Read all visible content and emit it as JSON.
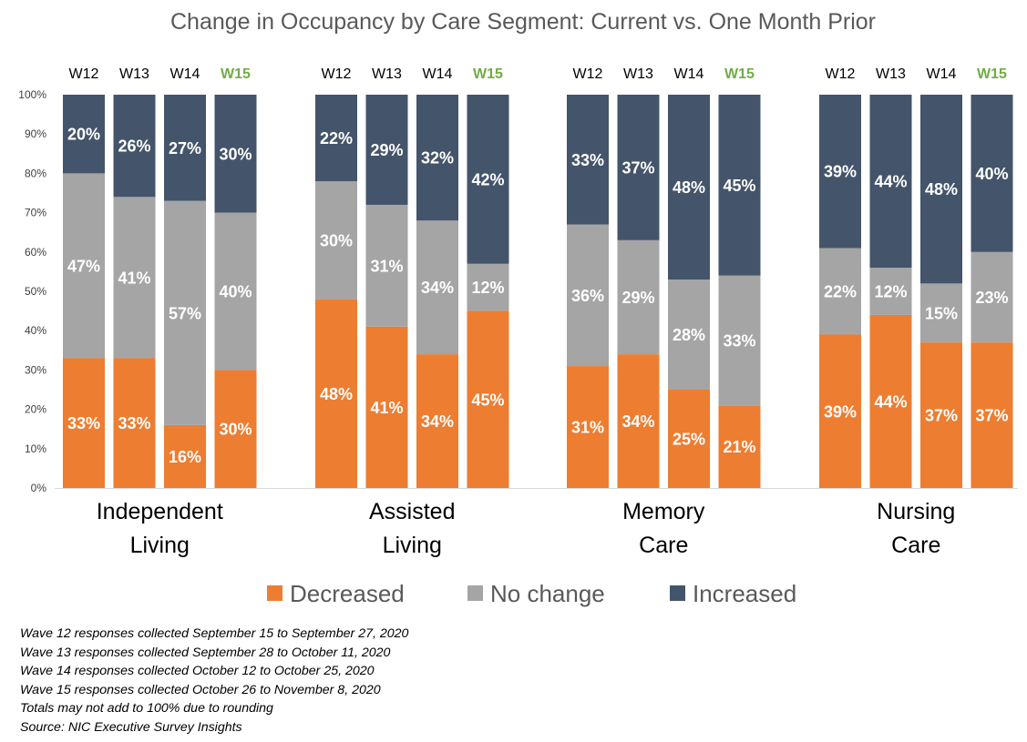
{
  "chart_data": {
    "type": "bar",
    "stacked": true,
    "title": "Change in Occupancy by Care Segment: Current vs. One Month Prior",
    "ylim": [
      0,
      100
    ],
    "y_ticks": [
      "0%",
      "10%",
      "20%",
      "30%",
      "40%",
      "50%",
      "60%",
      "70%",
      "80%",
      "90%",
      "100%"
    ],
    "waves": [
      "W12",
      "W13",
      "W14",
      "W15"
    ],
    "highlight_wave": "W15",
    "highlight_color": "#70ad47",
    "legend_position": "bottom",
    "series": [
      {
        "name": "Decreased",
        "color": "#ed7d31"
      },
      {
        "name": "No change",
        "color": "#a5a5a5"
      },
      {
        "name": "Increased",
        "color": "#44546a"
      }
    ],
    "groups": [
      {
        "label_lines": [
          "Independent",
          "Living"
        ],
        "bars": [
          {
            "wave": "W12",
            "values": [
              33,
              47,
              20
            ]
          },
          {
            "wave": "W13",
            "values": [
              33,
              41,
              26
            ]
          },
          {
            "wave": "W14",
            "values": [
              16,
              57,
              27
            ]
          },
          {
            "wave": "W15",
            "values": [
              30,
              40,
              30
            ]
          }
        ]
      },
      {
        "label_lines": [
          "Assisted",
          "Living"
        ],
        "bars": [
          {
            "wave": "W12",
            "values": [
              48,
              30,
              22
            ]
          },
          {
            "wave": "W13",
            "values": [
              41,
              31,
              29
            ]
          },
          {
            "wave": "W14",
            "values": [
              34,
              34,
              32
            ]
          },
          {
            "wave": "W15",
            "values": [
              45,
              12,
              42
            ]
          }
        ]
      },
      {
        "label_lines": [
          "Memory",
          "Care"
        ],
        "bars": [
          {
            "wave": "W12",
            "values": [
              31,
              36,
              33
            ]
          },
          {
            "wave": "W13",
            "values": [
              34,
              29,
              37
            ]
          },
          {
            "wave": "W14",
            "values": [
              25,
              28,
              48
            ]
          },
          {
            "wave": "W15",
            "values": [
              21,
              33,
              45
            ]
          }
        ]
      },
      {
        "label_lines": [
          "Nursing",
          "Care"
        ],
        "bars": [
          {
            "wave": "W12",
            "values": [
              39,
              22,
              39
            ]
          },
          {
            "wave": "W13",
            "values": [
              44,
              12,
              44
            ]
          },
          {
            "wave": "W14",
            "values": [
              37,
              15,
              48
            ]
          },
          {
            "wave": "W15",
            "values": [
              37,
              23,
              40
            ]
          }
        ]
      }
    ]
  },
  "notes": [
    "Wave 12 responses collected September 15 to September 27, 2020",
    "Wave 13 responses collected September 28 to October 11, 2020",
    "Wave 14 responses collected October 12 to October 25, 2020",
    "Wave 15 responses collected October 26 to November 8, 2020",
    "Totals may not add to 100% due to rounding",
    "Source: NIC Executive Survey Insights"
  ]
}
